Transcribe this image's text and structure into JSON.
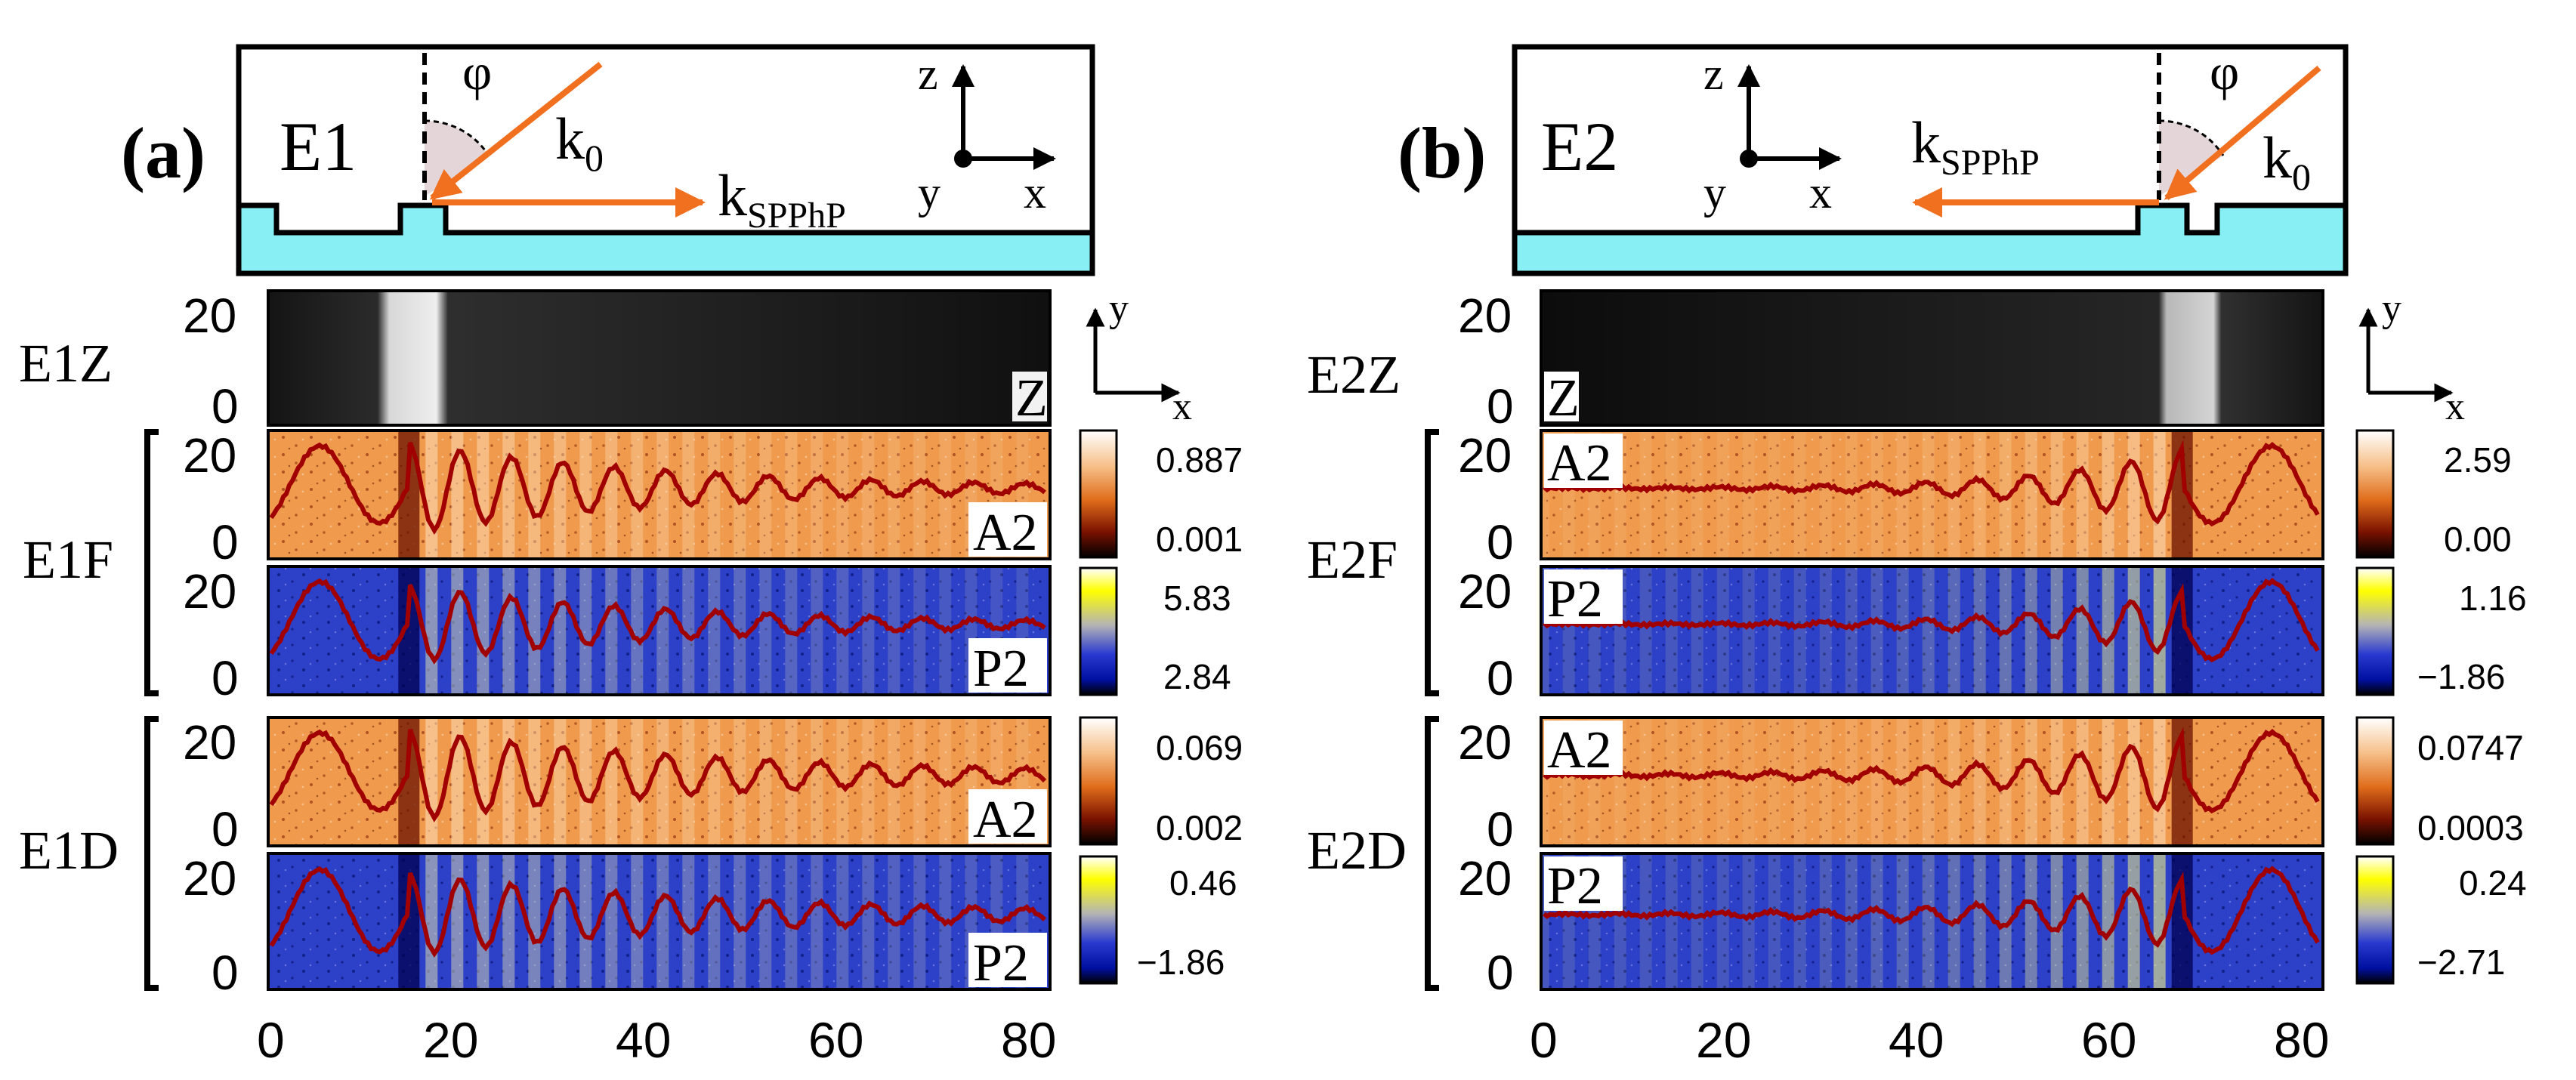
{
  "panels": [
    {
      "id": "a",
      "panel_label": "(a)",
      "sample_label": "E1",
      "angle_label": "φ",
      "wavevector_k0": "k",
      "wavevector_k0_sub": "0",
      "wavevector_spp": "k",
      "wavevector_spp_sub": "SPPhP",
      "axis_z": "z",
      "axis_y": "y",
      "axis_x": "x",
      "map_axis_y": "y",
      "map_axis_x": "x",
      "row_labels": {
        "topo": "E1Z",
        "f_group": "E1F",
        "d_group": "E1D"
      },
      "channel_labels": {
        "topo": "Z",
        "f_amp": "A2",
        "f_phase": "P2",
        "d_amp": "A2",
        "d_phase": "P2"
      },
      "colorbars": {
        "f_amp": {
          "max": "0.887",
          "min": "0.001"
        },
        "f_phase": {
          "max": "5.83",
          "min": "2.84"
        },
        "d_amp": {
          "max": "0.069",
          "min": "0.002"
        },
        "d_phase": {
          "max": "0.46",
          "min": "−1.86"
        }
      },
      "y_ticks": [
        "20",
        "0"
      ],
      "x_ticks": [
        "0",
        "20",
        "40",
        "60",
        "80"
      ]
    },
    {
      "id": "b",
      "panel_label": "(b)",
      "sample_label": "E2",
      "angle_label": "φ",
      "wavevector_k0": "k",
      "wavevector_k0_sub": "0",
      "wavevector_spp": "k",
      "wavevector_spp_sub": "SPPhP",
      "axis_z": "z",
      "axis_y": "y",
      "axis_x": "x",
      "map_axis_y": "y",
      "map_axis_x": "x",
      "row_labels": {
        "topo": "E2Z",
        "f_group": "E2F",
        "d_group": "E2D"
      },
      "channel_labels": {
        "topo": "Z",
        "f_amp": "A2",
        "f_phase": "P2",
        "d_amp": "A2",
        "d_phase": "P2"
      },
      "colorbars": {
        "f_amp": {
          "max": "2.59",
          "min": "0.00"
        },
        "f_phase": {
          "max": "1.16",
          "min": "−1.86"
        },
        "d_amp": {
          "max": "0.0747",
          "min": "0.0003"
        },
        "d_phase": {
          "max": "0.24",
          "min": "−2.71"
        }
      },
      "y_ticks": [
        "20",
        "0"
      ],
      "x_ticks": [
        "0",
        "20",
        "40",
        "60",
        "80"
      ]
    }
  ],
  "colors": {
    "substrate": "#88f0f4",
    "beam": "#f07020",
    "profile": "#a00000",
    "angle_fill": "#e4d6d8"
  }
}
